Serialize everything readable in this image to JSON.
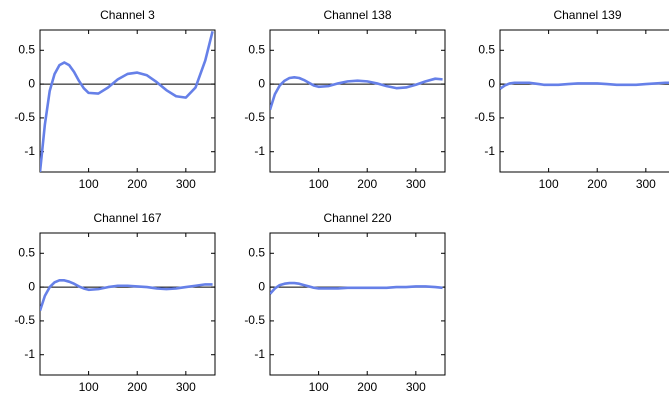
{
  "chart_data": [
    {
      "type": "line",
      "title": "Channel 3",
      "color": "#6680e8",
      "x": [
        0,
        10,
        20,
        30,
        40,
        50,
        60,
        70,
        80,
        90,
        100,
        120,
        140,
        160,
        180,
        200,
        220,
        240,
        260,
        280,
        300,
        320,
        340,
        355
      ],
      "values": [
        -1.3,
        -0.6,
        -0.1,
        0.15,
        0.28,
        0.32,
        0.28,
        0.18,
        0.05,
        -0.06,
        -0.13,
        -0.14,
        -0.05,
        0.07,
        0.15,
        0.17,
        0.13,
        0.03,
        -0.09,
        -0.18,
        -0.2,
        -0.05,
        0.35,
        0.78
      ],
      "xlim": [
        0,
        360
      ],
      "ylim": [
        -1.3,
        0.8
      ],
      "xticks": [
        100,
        200,
        300
      ],
      "yticks": [
        0.5,
        0,
        -0.5,
        -1
      ]
    },
    {
      "type": "line",
      "title": "Channel 138",
      "color": "#6680e8",
      "x": [
        0,
        10,
        20,
        30,
        40,
        50,
        60,
        70,
        80,
        90,
        100,
        120,
        140,
        160,
        180,
        200,
        220,
        240,
        260,
        280,
        300,
        320,
        340,
        355
      ],
      "values": [
        -0.38,
        -0.15,
        -0.02,
        0.05,
        0.09,
        0.1,
        0.09,
        0.06,
        0.02,
        -0.02,
        -0.04,
        -0.03,
        0.01,
        0.04,
        0.05,
        0.04,
        0.01,
        -0.03,
        -0.06,
        -0.05,
        -0.01,
        0.04,
        0.08,
        0.07
      ],
      "xlim": [
        0,
        360
      ],
      "ylim": [
        -1.3,
        0.8
      ],
      "xticks": [
        100,
        200,
        300
      ],
      "yticks": [
        0.5,
        0,
        -0.5,
        -1
      ]
    },
    {
      "type": "line",
      "title": "Channel 139",
      "color": "#6680e8",
      "x": [
        0,
        10,
        20,
        30,
        40,
        50,
        60,
        70,
        80,
        90,
        100,
        120,
        140,
        160,
        180,
        200,
        220,
        240,
        260,
        280,
        300,
        320,
        340,
        355
      ],
      "values": [
        -0.07,
        -0.02,
        0.01,
        0.02,
        0.02,
        0.02,
        0.02,
        0.01,
        0,
        -0.01,
        -0.01,
        -0.01,
        0,
        0.01,
        0.01,
        0.01,
        0,
        -0.01,
        -0.01,
        -0.01,
        0,
        0.01,
        0.02,
        0.02
      ],
      "xlim": [
        0,
        360
      ],
      "ylim": [
        -1.3,
        0.8
      ],
      "xticks": [
        100,
        200,
        300
      ],
      "yticks": [
        0.5,
        0,
        -0.5,
        -1
      ]
    },
    {
      "type": "line",
      "title": "Channel 167",
      "color": "#6680e8",
      "x": [
        0,
        10,
        20,
        30,
        40,
        50,
        60,
        70,
        80,
        90,
        100,
        120,
        140,
        160,
        180,
        200,
        220,
        240,
        260,
        280,
        300,
        320,
        340,
        355
      ],
      "values": [
        -0.35,
        -0.13,
        0,
        0.07,
        0.1,
        0.1,
        0.08,
        0.05,
        0.01,
        -0.02,
        -0.04,
        -0.03,
        0,
        0.02,
        0.02,
        0.01,
        0,
        -0.02,
        -0.03,
        -0.02,
        0,
        0.02,
        0.04,
        0.04
      ],
      "xlim": [
        0,
        360
      ],
      "ylim": [
        -1.3,
        0.8
      ],
      "xticks": [
        100,
        200,
        300
      ],
      "yticks": [
        0.5,
        0,
        -0.5,
        -1
      ]
    },
    {
      "type": "line",
      "title": "Channel 220",
      "color": "#6680e8",
      "x": [
        0,
        10,
        20,
        30,
        40,
        50,
        60,
        70,
        80,
        90,
        100,
        120,
        140,
        160,
        180,
        200,
        220,
        240,
        260,
        280,
        300,
        320,
        340,
        355
      ],
      "values": [
        -0.1,
        -0.02,
        0.03,
        0.05,
        0.06,
        0.06,
        0.05,
        0.03,
        0.01,
        -0.01,
        -0.02,
        -0.02,
        -0.02,
        -0.01,
        -0.01,
        -0.01,
        -0.01,
        -0.01,
        0,
        0,
        0.01,
        0.01,
        0,
        -0.01
      ],
      "xlim": [
        0,
        360
      ],
      "ylim": [
        -1.3,
        0.8
      ],
      "xticks": [
        100,
        200,
        300
      ],
      "yticks": [
        0.5,
        0,
        -0.5,
        -1
      ]
    }
  ]
}
